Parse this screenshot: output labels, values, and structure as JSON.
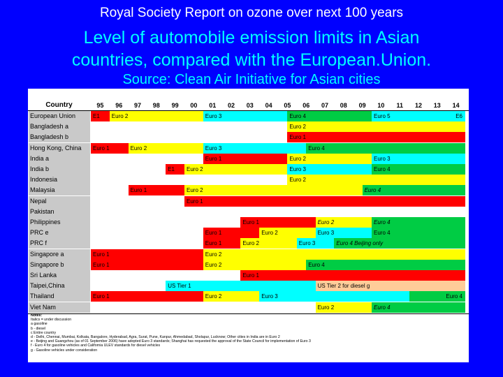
{
  "slide": {
    "title_line1": "Royal Society Report on ozone over next 100 years",
    "title_line2a": "Level of automobile emission limits in Asian",
    "title_line2b": "countries, compared with the European.Union.",
    "title_line3": "Source: Clean Air Initiative for Asian cities",
    "colors": {
      "background": "#0000ff",
      "title1": "#ffffff",
      "title2": "#00ffff"
    }
  },
  "table": {
    "country_header": "Country",
    "years": [
      "95",
      "96",
      "97",
      "98",
      "99",
      "00",
      "01",
      "02",
      "03",
      "04",
      "05",
      "06",
      "07",
      "08",
      "09",
      "10",
      "11",
      "12",
      "13",
      "14"
    ],
    "colors": {
      "red": "#ff0000",
      "yellow": "#ffff00",
      "cyan": "#00ffff",
      "green": "#00cc44",
      "orange": "#ffcc99",
      "grey": "#c9c9c9"
    },
    "rows": [
      {
        "country": "European Union",
        "segments": [
          {
            "start": 0,
            "end": 1,
            "color": "red",
            "label": "E1"
          },
          {
            "start": 1,
            "end": 6,
            "color": "yellow",
            "label": "Euro 2"
          },
          {
            "start": 6,
            "end": 10.5,
            "color": "cyan",
            "label": "Euro 3"
          },
          {
            "start": 10.5,
            "end": 15,
            "color": "green",
            "label": "Euro 4"
          },
          {
            "start": 15,
            "end": 19,
            "color": "cyan",
            "label": "Euro 5"
          },
          {
            "start": 19,
            "end": 20,
            "color": "cyan",
            "label": "E6",
            "align": "right"
          }
        ]
      },
      {
        "country": "Bangladesh a",
        "segments": [
          {
            "start": 10.5,
            "end": 20,
            "color": "yellow",
            "label": "Euro 2"
          }
        ]
      },
      {
        "country": "Bangladesh b",
        "segments": [
          {
            "start": 10.5,
            "end": 20,
            "color": "red",
            "label": "Euro 1"
          }
        ]
      },
      {
        "country": "Hong Kong, China",
        "segments": [
          {
            "start": 0,
            "end": 2,
            "color": "red",
            "label": "Euro 1"
          },
          {
            "start": 2,
            "end": 6,
            "color": "yellow",
            "label": "Euro 2"
          },
          {
            "start": 6,
            "end": 11.5,
            "color": "cyan",
            "label": "Euro 3"
          },
          {
            "start": 11.5,
            "end": 20,
            "color": "green",
            "label": "Euro 4"
          }
        ]
      },
      {
        "country": "India a",
        "segments": [
          {
            "start": 6,
            "end": 10.5,
            "color": "red",
            "label": "Euro 1"
          },
          {
            "start": 10.5,
            "end": 15,
            "color": "yellow",
            "label": "Euro 2"
          },
          {
            "start": 15,
            "end": 20,
            "color": "cyan",
            "label": "Euro 3"
          }
        ]
      },
      {
        "country": "India b",
        "segments": [
          {
            "start": 4,
            "end": 5,
            "color": "red",
            "label": "E1"
          },
          {
            "start": 5,
            "end": 10.5,
            "color": "yellow",
            "label": "Euro 2"
          },
          {
            "start": 10.5,
            "end": 15,
            "color": "cyan",
            "label": "Euro 3"
          },
          {
            "start": 15,
            "end": 20,
            "color": "green",
            "label": "Euro 4"
          }
        ]
      },
      {
        "country": "Indonesia",
        "segments": [
          {
            "start": 10.5,
            "end": 20,
            "color": "yellow",
            "label": "Euro 2"
          }
        ]
      },
      {
        "country": "Malaysia",
        "segments": [
          {
            "start": 2,
            "end": 5,
            "color": "red",
            "label": "Euro 1"
          },
          {
            "start": 5,
            "end": 14.5,
            "color": "yellow",
            "label": "Euro 2"
          },
          {
            "start": 14.5,
            "end": 20,
            "color": "green",
            "label": "Euro 4",
            "italic": true
          }
        ]
      },
      {
        "country": "Nepal",
        "segments": [
          {
            "start": 5,
            "end": 20,
            "color": "red",
            "label": "Euro 1"
          }
        ]
      },
      {
        "country": "Pakistan",
        "segments": []
      },
      {
        "country": "Philippines",
        "segments": [
          {
            "start": 8,
            "end": 12,
            "color": "red",
            "label": "Euro 1"
          },
          {
            "start": 12,
            "end": 15,
            "color": "yellow",
            "label": "Euro 2",
            "italic": true
          },
          {
            "start": 15,
            "end": 20,
            "color": "green",
            "label": "Euro 4",
            "italic": true
          }
        ]
      },
      {
        "country": "PRC e",
        "segments": [
          {
            "start": 6,
            "end": 9,
            "color": "red",
            "label": "Euro 1"
          },
          {
            "start": 9,
            "end": 12,
            "color": "yellow",
            "label": "Euro 2"
          },
          {
            "start": 12,
            "end": 15,
            "color": "cyan",
            "label": "Euro 3"
          },
          {
            "start": 15,
            "end": 20,
            "color": "green",
            "label": "Euro 4"
          }
        ]
      },
      {
        "country": "PRC f",
        "segments": [
          {
            "start": 6,
            "end": 8,
            "color": "red",
            "label": "Euro 1"
          },
          {
            "start": 8,
            "end": 11,
            "color": "yellow",
            "label": "Euro 2"
          },
          {
            "start": 11,
            "end": 13,
            "color": "cyan",
            "label": "Euro 3"
          },
          {
            "start": 13,
            "end": 20,
            "color": "green",
            "label": "Euro 4 Beijing only",
            "italic": true
          }
        ]
      },
      {
        "country": "Singapore a",
        "segments": [
          {
            "start": 0,
            "end": 6,
            "color": "red",
            "label": "Euro 1"
          },
          {
            "start": 6,
            "end": 20,
            "color": "yellow",
            "label": "Euro 2"
          }
        ]
      },
      {
        "country": "Singapore b",
        "segments": [
          {
            "start": 0,
            "end": 6,
            "color": "red",
            "label": "Euro 1"
          },
          {
            "start": 6,
            "end": 11.5,
            "color": "yellow",
            "label": "Euro 2"
          },
          {
            "start": 11.5,
            "end": 20,
            "color": "green",
            "label": "Euro 4"
          }
        ]
      },
      {
        "country": "Sri Lanka",
        "segments": [
          {
            "start": 8,
            "end": 20,
            "color": "red",
            "label": "Euro 1"
          }
        ]
      },
      {
        "country": "Taipei,China",
        "segments": [
          {
            "start": 4,
            "end": 12,
            "color": "cyan",
            "label": "US Tier 1"
          },
          {
            "start": 12,
            "end": 20,
            "color": "orange",
            "label": "US Tier 2 for diesel g"
          }
        ]
      },
      {
        "country": "Thailand",
        "segments": [
          {
            "start": 0,
            "end": 6,
            "color": "red",
            "label": "Euro 1"
          },
          {
            "start": 6,
            "end": 9,
            "color": "yellow",
            "label": "Euro 2"
          },
          {
            "start": 9,
            "end": 17,
            "color": "cyan",
            "label": "Euro 3"
          },
          {
            "start": 17,
            "end": 20,
            "color": "green",
            "label": "Euro 4",
            "align": "right"
          }
        ]
      },
      {
        "country": "Viet Nam",
        "segments": [
          {
            "start": 12,
            "end": 15,
            "color": "yellow",
            "label": "Euro 2"
          },
          {
            "start": 15,
            "end": 20,
            "color": "green",
            "label": "Euro 4",
            "italic": true
          }
        ]
      }
    ],
    "notes": [
      "Notes:",
      "Italics = under discussion",
      "a  gasoline",
      "b - diesel",
      "c  Entire country",
      "d - Delhi, Chennai, Mumbai, Kolkata, Bangalore, Hyderabad, Agra, Surat, Pune, Kanpur, Ahmedabad, Sholapur, Lucknow; Other cities in India are in Euro 2",
      "e - Beijing and Guangzhou (as of 01 September 2006) have adopted Euro 3 standards; Shanghai has requested the approval of the State Council for implementation of Euro 3",
      "f - Euro 4 for gasoline vehicles and California ULEV standards for diesel vehicles",
      "g - Gasoline vehicles under consideration"
    ]
  }
}
